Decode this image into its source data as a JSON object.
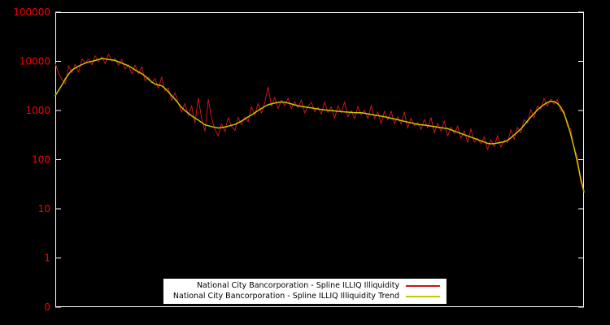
{
  "chart": {
    "background": "#000000",
    "axis_color": "#ffffff",
    "tick_label_color": "#ff0000",
    "y_tick_labels": [
      "100000",
      "10000",
      "1000",
      "100",
      "10",
      "1",
      "0"
    ],
    "legend": {
      "items": [
        {
          "label": "National City Bancorporation - Spline ILLIQ Illiquidity",
          "color": "#cc1414"
        },
        {
          "label": "National City Bancorporation - Spline ILLIQ Illiquidity Trend",
          "color": "#c8c800"
        }
      ]
    }
  },
  "chart_data": {
    "type": "line",
    "title": "",
    "xlabel": "",
    "ylabel": "",
    "y_scale": "log",
    "ylim": [
      0.1,
      100000
    ],
    "x_axis": {
      "tick_labels": []
    },
    "n_points": 160,
    "series": [
      {
        "name": "National City Bancorporation - Spline ILLIQ Illiquidity",
        "color": "#cc1414",
        "values": [
          9000,
          5700,
          4300,
          3500,
          8200,
          5900,
          8800,
          6000,
          11200,
          9200,
          11200,
          8500,
          13000,
          9800,
          12500,
          9000,
          14200,
          10200,
          11400,
          8300,
          11000,
          6900,
          8500,
          5600,
          8400,
          5500,
          7800,
          4000,
          4800,
          3600,
          4500,
          2800,
          4800,
          2500,
          2900,
          1600,
          2300,
          1400,
          920,
          1400,
          790,
          1250,
          560,
          1800,
          680,
          380,
          1700,
          700,
          410,
          310,
          540,
          370,
          720,
          475,
          390,
          730,
          520,
          740,
          590,
          1200,
          810,
          1400,
          880,
          1450,
          3000,
          1220,
          1850,
          1100,
          1640,
          1250,
          1780,
          1090,
          1500,
          1130,
          1640,
          890,
          1210,
          1470,
          940,
          1180,
          840,
          1490,
          910,
          1190,
          690,
          1250,
          900,
          1500,
          740,
          1000,
          680,
          1220,
          810,
          1010,
          680,
          1250,
          690,
          940,
          540,
          970,
          650,
          975,
          540,
          745,
          530,
          930,
          435,
          700,
          490,
          574,
          410,
          660,
          445,
          720,
          350,
          550,
          380,
          615,
          300,
          460,
          340,
          485,
          272,
          385,
          225,
          425,
          225,
          273,
          210,
          290,
          160,
          256,
          184,
          310,
          180,
          250,
          220,
          410,
          256,
          455,
          355,
          650,
          550,
          1060,
          700,
          1240,
          1060,
          1780,
          1230,
          1700,
          1350,
          1680,
          980,
          980,
          480,
          420,
          170,
          120,
          36,
          22
        ]
      },
      {
        "name": "National City Bancorporation - Spline ILLIQ Illiquidity Trend",
        "color": "#c8c800",
        "values": [
          2000,
          2600,
          3300,
          4400,
          5500,
          6600,
          7300,
          8000,
          8600,
          9200,
          9700,
          10000,
          10400,
          10900,
          11400,
          11200,
          10900,
          10700,
          10400,
          9800,
          9200,
          8650,
          8100,
          7400,
          6700,
          6100,
          5600,
          5000,
          4350,
          3800,
          3450,
          3300,
          3180,
          2800,
          2400,
          2000,
          1700,
          1400,
          1150,
          1000,
          880,
          780,
          700,
          640,
          570,
          510,
          490,
          470,
          455,
          441,
          450,
          462,
          480,
          500,
          520,
          560,
          610,
          670,
          740,
          810,
          900,
          1000,
          1100,
          1210,
          1310,
          1360,
          1420,
          1460,
          1490,
          1470,
          1420,
          1360,
          1300,
          1250,
          1215,
          1185,
          1155,
          1130,
          1100,
          1075,
          1045,
          1030,
          1010,
          995,
          980,
          962,
          948,
          938,
          925,
          912,
          905,
          903,
          901,
          880,
          855,
          830,
          808,
          787,
          766,
          745,
          720,
          696,
          672,
          648,
          624,
          601,
          580,
          560,
          541,
          522,
          513,
          505,
          494,
          482,
          470,
          459,
          448,
          438,
          428,
          404,
          382,
          360,
          340,
          322,
          304,
          287,
          271,
          256,
          242,
          228,
          215,
          210,
          212,
          218,
          224,
          230,
          248,
          278,
          320,
          366,
          420,
          505,
          612,
          735,
          872,
          1030,
          1180,
          1320,
          1450,
          1545,
          1520,
          1400,
          1180,
          860,
          560,
          330,
          180,
          90,
          42,
          22
        ]
      }
    ]
  }
}
